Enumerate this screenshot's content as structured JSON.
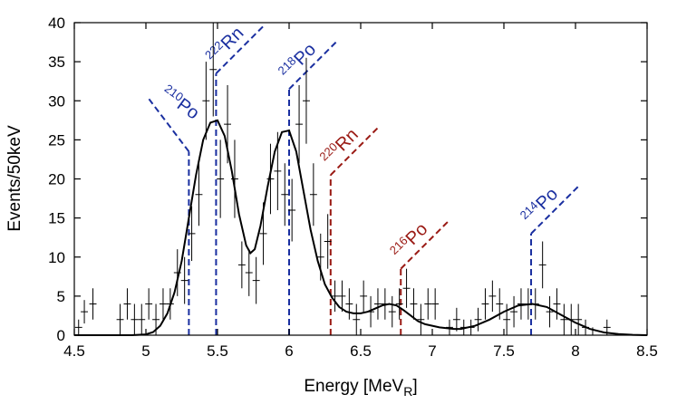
{
  "chart_data": {
    "type": "line",
    "xlabel": "Energy [MeV",
    "xlabel_sub": "R",
    "xlabel_close": "]",
    "ylabel": "Events/50keV",
    "xlim": [
      4.5,
      8.5
    ],
    "ylim": [
      0,
      40
    ],
    "xticks": [
      "4.5",
      "5",
      "5.5",
      "6",
      "6.5",
      "7",
      "7.5",
      "8",
      "8.5"
    ],
    "yticks": [
      "0",
      "5",
      "10",
      "15",
      "20",
      "25",
      "30",
      "35",
      "40"
    ],
    "grid": false,
    "colors": {
      "radon_chain": "#1a2fa0",
      "thoron_chain": "#9a1a14",
      "data": "#000000"
    },
    "markers": [
      {
        "mass": "210",
        "element": "Po",
        "x": 5.3,
        "y_top": 23.5,
        "color": "#1a2fa0"
      },
      {
        "mass": "222",
        "element": "Rn",
        "x": 5.49,
        "y_top": 33.5,
        "color": "#1a2fa0"
      },
      {
        "mass": "218",
        "element": "Po",
        "x": 6.0,
        "y_top": 31.5,
        "color": "#1a2fa0"
      },
      {
        "mass": "220",
        "element": "Rn",
        "x": 6.29,
        "y_top": 20.5,
        "color": "#9a1a14"
      },
      {
        "mass": "216",
        "element": "Po",
        "x": 6.78,
        "y_top": 8.5,
        "color": "#9a1a14"
      },
      {
        "mass": "214",
        "element": "Po",
        "x": 7.69,
        "y_top": 13.0,
        "color": "#1a2fa0"
      }
    ],
    "fit": {
      "name": "",
      "x": [
        4.5,
        4.6,
        4.7,
        4.8,
        4.9,
        5.0,
        5.05,
        5.1,
        5.15,
        5.2,
        5.25,
        5.3,
        5.35,
        5.4,
        5.45,
        5.5,
        5.55,
        5.6,
        5.65,
        5.7,
        5.73,
        5.76,
        5.8,
        5.85,
        5.9,
        5.95,
        6.0,
        6.05,
        6.1,
        6.15,
        6.2,
        6.25,
        6.3,
        6.35,
        6.4,
        6.45,
        6.5,
        6.55,
        6.6,
        6.65,
        6.7,
        6.75,
        6.8,
        6.85,
        6.9,
        6.95,
        7.0,
        7.05,
        7.1,
        7.15,
        7.2,
        7.3,
        7.4,
        7.5,
        7.6,
        7.7,
        7.8,
        7.9,
        8.0,
        8.1,
        8.2,
        8.3,
        8.4,
        8.5
      ],
      "y": [
        0,
        0,
        0,
        0,
        0,
        0.1,
        0.4,
        1.2,
        2.8,
        5.5,
        9.5,
        15.0,
        20.5,
        25.0,
        27.2,
        27.5,
        25.5,
        21.0,
        15.5,
        11.5,
        10.5,
        11.0,
        14.0,
        19.0,
        23.5,
        26.0,
        26.2,
        23.5,
        18.5,
        13.5,
        9.5,
        6.5,
        4.8,
        3.6,
        3.0,
        2.8,
        2.8,
        3.0,
        3.4,
        3.8,
        4.0,
        3.8,
        3.2,
        2.5,
        1.8,
        1.4,
        1.2,
        1.0,
        0.9,
        0.8,
        0.8,
        1.2,
        2.0,
        3.0,
        3.8,
        4.0,
        3.6,
        2.6,
        1.6,
        0.8,
        0.35,
        0.15,
        0.05,
        0
      ]
    },
    "series": [
      {
        "name": "",
        "points": [
          [
            4.53,
            1,
            1,
            0
          ],
          [
            4.57,
            3,
            1.5,
            0
          ],
          [
            4.63,
            4,
            2,
            0
          ],
          [
            4.82,
            2,
            2,
            0
          ],
          [
            4.87,
            4,
            2,
            0
          ],
          [
            4.92,
            2,
            2,
            0
          ],
          [
            4.97,
            2,
            2,
            0
          ],
          [
            5.02,
            4,
            2,
            0
          ],
          [
            5.07,
            2,
            2,
            0
          ],
          [
            5.12,
            4,
            2,
            0
          ],
          [
            5.17,
            4,
            2,
            0
          ],
          [
            5.22,
            8,
            3,
            0
          ],
          [
            5.27,
            7,
            3,
            0
          ],
          [
            5.32,
            13,
            3.5,
            0
          ],
          [
            5.37,
            18,
            4,
            0
          ],
          [
            5.42,
            30,
            5,
            0
          ],
          [
            5.47,
            34,
            6,
            0
          ],
          [
            5.52,
            20,
            5,
            0
          ],
          [
            5.57,
            27,
            5,
            0
          ],
          [
            5.62,
            20,
            5,
            0
          ],
          [
            5.67,
            9,
            3,
            0
          ],
          [
            5.72,
            8,
            3,
            0
          ],
          [
            5.77,
            7,
            3,
            0
          ],
          [
            5.82,
            13,
            4,
            0
          ],
          [
            5.87,
            20,
            4.5,
            0
          ],
          [
            5.92,
            21,
            5,
            0
          ],
          [
            5.97,
            18,
            4,
            0
          ],
          [
            6.02,
            16,
            4,
            0
          ],
          [
            6.07,
            27,
            5,
            0
          ],
          [
            6.12,
            30,
            5.5,
            0
          ],
          [
            6.17,
            18,
            4,
            0
          ],
          [
            6.22,
            10,
            3,
            0
          ],
          [
            6.27,
            12,
            3.5,
            0
          ],
          [
            6.32,
            5,
            2,
            0
          ],
          [
            6.37,
            5,
            2,
            0
          ],
          [
            6.42,
            4,
            2,
            0
          ],
          [
            6.47,
            2,
            2,
            0
          ],
          [
            6.52,
            5,
            2,
            0
          ],
          [
            6.57,
            3,
            2,
            0
          ],
          [
            6.62,
            4,
            2,
            0
          ],
          [
            6.67,
            4,
            2,
            0
          ],
          [
            6.72,
            3,
            2,
            0
          ],
          [
            6.77,
            4,
            2,
            0
          ],
          [
            6.82,
            6,
            2.5,
            0
          ],
          [
            6.87,
            4,
            2,
            0
          ],
          [
            6.92,
            2,
            2,
            0
          ],
          [
            6.97,
            4,
            2,
            0
          ],
          [
            7.02,
            4,
            2,
            0
          ],
          [
            7.12,
            1,
            1,
            0
          ],
          [
            7.17,
            2,
            1.5,
            0
          ],
          [
            7.22,
            1,
            1,
            0
          ],
          [
            7.27,
            1,
            1,
            0
          ],
          [
            7.32,
            2,
            1.5,
            0
          ],
          [
            7.37,
            4,
            2,
            0
          ],
          [
            7.42,
            5,
            2,
            0
          ],
          [
            7.47,
            4,
            2,
            0
          ],
          [
            7.52,
            2,
            2,
            0
          ],
          [
            7.57,
            3,
            2,
            0
          ],
          [
            7.62,
            4,
            2,
            0
          ],
          [
            7.67,
            4,
            2,
            0
          ],
          [
            7.72,
            4,
            2,
            0
          ],
          [
            7.77,
            9,
            3,
            0
          ],
          [
            7.82,
            3,
            2,
            0
          ],
          [
            7.87,
            4,
            2,
            0
          ],
          [
            7.92,
            2,
            2,
            0
          ],
          [
            7.97,
            2,
            2,
            0
          ],
          [
            8.02,
            2,
            2,
            0
          ],
          [
            8.07,
            1,
            1,
            0
          ],
          [
            8.12,
            0,
            1,
            0
          ],
          [
            8.22,
            1,
            1,
            0
          ]
        ]
      }
    ]
  }
}
